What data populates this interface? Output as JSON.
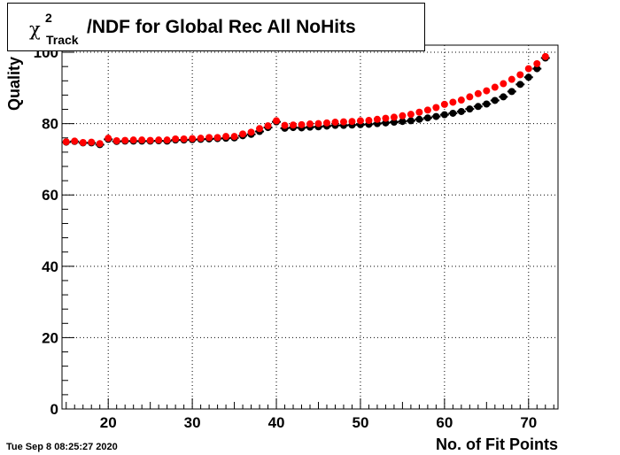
{
  "footer": {
    "timestamp": "Tue Sep  8 08:25:27 2020"
  },
  "chart_data": {
    "type": "scatter",
    "title": {
      "symbol": "χ",
      "superscript": "2",
      "subscript": "Track",
      "text": "/NDF for Global Rec All NoHits"
    },
    "xlabel": "No. of Fit Points",
    "ylabel": "Quality",
    "xlim": [
      14.5,
      73.5
    ],
    "ylim": [
      0,
      102
    ],
    "xticks": [
      20,
      30,
      40,
      50,
      60,
      70
    ],
    "yticks": [
      0,
      20,
      40,
      60,
      80,
      100
    ],
    "grid": true,
    "series": [
      {
        "color": "#000000",
        "x": [
          15,
          16,
          17,
          18,
          19,
          20,
          21,
          22,
          23,
          24,
          25,
          26,
          27,
          28,
          29,
          30,
          31,
          32,
          33,
          34,
          35,
          36,
          37,
          38,
          39,
          40,
          41,
          42,
          43,
          44,
          45,
          46,
          47,
          48,
          49,
          50,
          51,
          52,
          53,
          54,
          55,
          56,
          57,
          58,
          59,
          60,
          61,
          62,
          63,
          64,
          65,
          66,
          67,
          68,
          69,
          70,
          71,
          72
        ],
        "values": [
          74.8,
          75.0,
          74.6,
          74.6,
          74.1,
          75.6,
          75.0,
          75.1,
          75.1,
          75.1,
          75.1,
          75.2,
          75.1,
          75.4,
          75.4,
          75.5,
          75.6,
          75.7,
          75.8,
          75.9,
          76.0,
          76.6,
          77.0,
          77.8,
          78.9,
          80.5,
          78.7,
          78.9,
          78.8,
          79.0,
          79.1,
          79.3,
          79.5,
          79.5,
          79.6,
          79.7,
          79.8,
          80.0,
          80.2,
          80.4,
          80.6,
          80.8,
          81.2,
          81.6,
          82.0,
          82.5,
          82.9,
          83.4,
          84.1,
          84.8,
          85.5,
          86.5,
          87.5,
          89.0,
          91.0,
          93.0,
          95.4,
          98.4
        ]
      },
      {
        "color": "#ff0000",
        "x": [
          15,
          16,
          17,
          18,
          19,
          20,
          21,
          22,
          23,
          24,
          25,
          26,
          27,
          28,
          29,
          30,
          31,
          32,
          33,
          34,
          35,
          36,
          37,
          38,
          39,
          40,
          41,
          42,
          43,
          44,
          45,
          46,
          47,
          48,
          49,
          50,
          51,
          52,
          53,
          54,
          55,
          56,
          57,
          58,
          59,
          60,
          61,
          62,
          63,
          64,
          65,
          66,
          67,
          68,
          69,
          70,
          71,
          72
        ],
        "values": [
          74.9,
          75.1,
          74.7,
          74.8,
          74.4,
          75.9,
          75.2,
          75.3,
          75.4,
          75.4,
          75.3,
          75.4,
          75.4,
          75.7,
          75.7,
          75.8,
          75.9,
          76.1,
          76.1,
          76.4,
          76.4,
          77.1,
          77.6,
          78.6,
          79.4,
          80.8,
          79.5,
          79.6,
          79.7,
          79.9,
          80.0,
          80.2,
          80.4,
          80.5,
          80.6,
          80.8,
          80.9,
          81.2,
          81.5,
          81.8,
          82.2,
          82.6,
          83.2,
          83.8,
          84.5,
          85.4,
          86.0,
          86.6,
          87.5,
          88.4,
          89.2,
          90.2,
          91.2,
          92.4,
          93.7,
          95.4,
          96.8,
          98.8
        ]
      }
    ]
  }
}
